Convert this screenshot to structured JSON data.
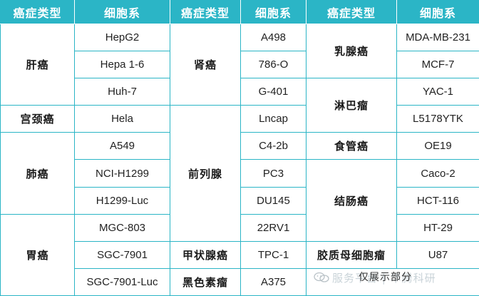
{
  "table": {
    "headers": [
      "癌症类型",
      "细胞系",
      "癌症类型",
      "细胞系",
      "癌症类型",
      "细胞系"
    ],
    "groups": {
      "liver": {
        "name": "肝癌",
        "cells": [
          "HepG2",
          "Hepa 1-6",
          "Huh-7"
        ]
      },
      "cervix": {
        "name": "宫颈癌",
        "cells": [
          "Hela"
        ]
      },
      "lung": {
        "name": "肺癌",
        "cells": [
          "A549",
          "NCI-H1299",
          "H1299-Luc"
        ]
      },
      "stomach": {
        "name": "胃癌",
        "cells": [
          "MGC-803",
          "SGC-7901",
          "SGC-7901-Luc"
        ]
      },
      "kidney": {
        "name": "肾癌",
        "cells": [
          "A498",
          "786-O",
          "G-401"
        ]
      },
      "prostate": {
        "name": "前列腺",
        "cells": [
          "Lncap",
          "C4-2b",
          "PC3",
          "DU145",
          "22RV1"
        ]
      },
      "thyroid": {
        "name": "甲状腺癌",
        "cells": [
          "TPC-1"
        ]
      },
      "melanoma": {
        "name": "黑色素瘤",
        "cells": [
          "A375"
        ]
      },
      "breast": {
        "name": "乳腺癌",
        "cells": [
          "MDA-MB-231",
          "MCF-7"
        ]
      },
      "lymph": {
        "name": "淋巴瘤",
        "cells": [
          "YAC-1",
          "L5178YTK"
        ]
      },
      "esoph": {
        "name": "食管癌",
        "cells": [
          "OE19"
        ]
      },
      "colon": {
        "name": "结肠癌",
        "cells": [
          "Caco-2",
          "HCT-116",
          "HT-29"
        ]
      },
      "glioma": {
        "name": "胶质母细胞瘤",
        "cells": [
          "U87"
        ]
      }
    }
  },
  "watermark": {
    "icon": "wechat-icon",
    "faint_text": "服务平台 | 华腾科研",
    "overlay_text": "仅展示部分"
  }
}
